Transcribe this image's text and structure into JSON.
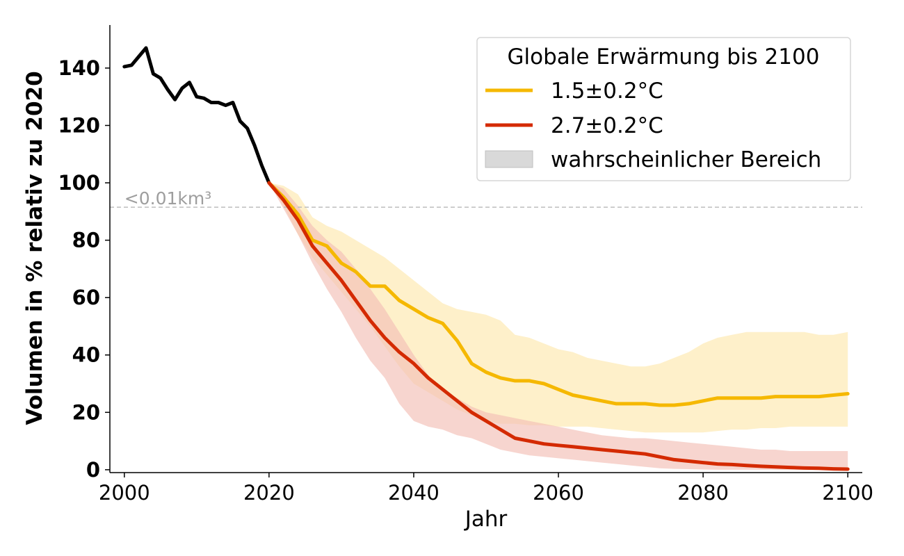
{
  "chart_data": {
    "type": "line",
    "xlabel": "Jahr",
    "ylabel": "Volumen in % relativ zu 2020",
    "xlim": [
      1998,
      2102
    ],
    "ylim": [
      -1,
      155
    ],
    "x_ticks": [
      2000,
      2020,
      2040,
      2060,
      2080,
      2100
    ],
    "y_ticks": [
      0,
      20,
      40,
      60,
      80,
      100,
      120,
      140
    ],
    "grid": false,
    "legend": {
      "title": "Globale Erwärmung bis 2100",
      "placement": "top-right",
      "entries": [
        "1.5±0.2°C",
        "2.7±0.2°C",
        "wahrscheinlicher Bereich"
      ]
    },
    "annotation": {
      "text": "<0.01km³",
      "y": 91.5,
      "style": "dashed horizontal line"
    },
    "colors": {
      "historical": "#000000",
      "s15": "#f5b800",
      "s27": "#d42a00",
      "s15_band": "#fdebb8",
      "s27_band": "#f2bfb5",
      "band_legend": "#d9d9d9",
      "annotation": "#bdbdbd"
    },
    "historical": {
      "name": "",
      "x": [
        2000,
        2001,
        2002,
        2003,
        2004,
        2005,
        2006,
        2007,
        2008,
        2009,
        2010,
        2011,
        2012,
        2013,
        2014,
        2015,
        2016,
        2017,
        2018,
        2019,
        2020
      ],
      "y": [
        140.5,
        141,
        144,
        147,
        138,
        136.5,
        132.5,
        129,
        133,
        135,
        130,
        129.5,
        128,
        128,
        127,
        128,
        121.5,
        119,
        113,
        106,
        100
      ]
    },
    "series": [
      {
        "name": "1.5±0.2°C",
        "x": [
          2020,
          2022,
          2024,
          2026,
          2028,
          2030,
          2032,
          2034,
          2036,
          2038,
          2040,
          2042,
          2044,
          2046,
          2048,
          2050,
          2052,
          2054,
          2056,
          2058,
          2060,
          2062,
          2064,
          2066,
          2068,
          2070,
          2072,
          2074,
          2076,
          2078,
          2080,
          2082,
          2084,
          2086,
          2088,
          2090,
          2092,
          2094,
          2096,
          2098,
          2100
        ],
        "y": [
          100,
          95,
          89,
          80,
          78,
          72,
          69,
          64,
          64,
          59,
          56,
          53,
          51,
          45,
          37,
          34,
          32,
          31,
          31,
          30,
          28,
          26,
          25,
          24,
          23,
          23,
          23,
          22.5,
          22.5,
          23,
          24,
          25,
          25,
          25,
          25,
          25.5,
          25.5,
          25.5,
          25.5,
          26,
          26.5
        ],
        "lower": [
          100,
          92,
          82,
          74,
          68,
          62,
          56,
          50,
          43,
          36,
          30,
          27,
          24,
          21,
          19,
          17,
          16,
          16,
          15.5,
          15.5,
          15,
          15,
          15,
          14.5,
          14,
          13.5,
          13,
          13,
          13,
          13,
          13,
          13.5,
          14,
          14,
          14.5,
          14.5,
          15,
          15,
          15,
          15,
          15
        ],
        "upper": [
          100,
          99,
          96,
          88,
          85,
          83,
          80,
          77,
          74,
          70,
          66,
          62,
          58,
          56,
          55,
          54,
          52,
          47,
          46,
          44,
          42,
          41,
          39,
          38,
          37,
          36,
          36,
          37,
          39,
          41,
          44,
          46,
          47,
          48,
          48,
          48,
          48,
          48,
          47,
          47,
          48
        ]
      },
      {
        "name": "2.7±0.2°C",
        "x": [
          2020,
          2022,
          2024,
          2026,
          2028,
          2030,
          2032,
          2034,
          2036,
          2038,
          2040,
          2042,
          2044,
          2046,
          2048,
          2050,
          2052,
          2054,
          2056,
          2058,
          2060,
          2062,
          2064,
          2066,
          2068,
          2070,
          2072,
          2074,
          2076,
          2078,
          2080,
          2082,
          2084,
          2086,
          2088,
          2090,
          2092,
          2094,
          2096,
          2098,
          2100
        ],
        "y": [
          100,
          94,
          87,
          78,
          72,
          66,
          59,
          52,
          46,
          41,
          37,
          32,
          28,
          24,
          20,
          17,
          14,
          11,
          10,
          9,
          8.5,
          8,
          7.5,
          7,
          6.5,
          6,
          5.5,
          4.5,
          3.5,
          3,
          2.5,
          2,
          1.8,
          1.5,
          1.2,
          1,
          0.8,
          0.6,
          0.5,
          0.3,
          0.2
        ],
        "lower": [
          100,
          91,
          82,
          72,
          63,
          55,
          46,
          38,
          32,
          23,
          17,
          15,
          14,
          12,
          11,
          9,
          7,
          6,
          5,
          4.5,
          4,
          3.5,
          3,
          2.5,
          2,
          1.5,
          1,
          0.5,
          0.3,
          0.2,
          0.1,
          0,
          0,
          0,
          0,
          0,
          0,
          0,
          0,
          0,
          0
        ],
        "upper": [
          100,
          98,
          92,
          85,
          80,
          76,
          70,
          63,
          56,
          48,
          40,
          33,
          28,
          25,
          22,
          20,
          19,
          18,
          17,
          16,
          15,
          14,
          13,
          12,
          11.5,
          11,
          11,
          10.5,
          10,
          9.5,
          9,
          8.5,
          8,
          7.5,
          7,
          7,
          6.5,
          6.5,
          6.5,
          6.5,
          6.5
        ]
      }
    ]
  }
}
